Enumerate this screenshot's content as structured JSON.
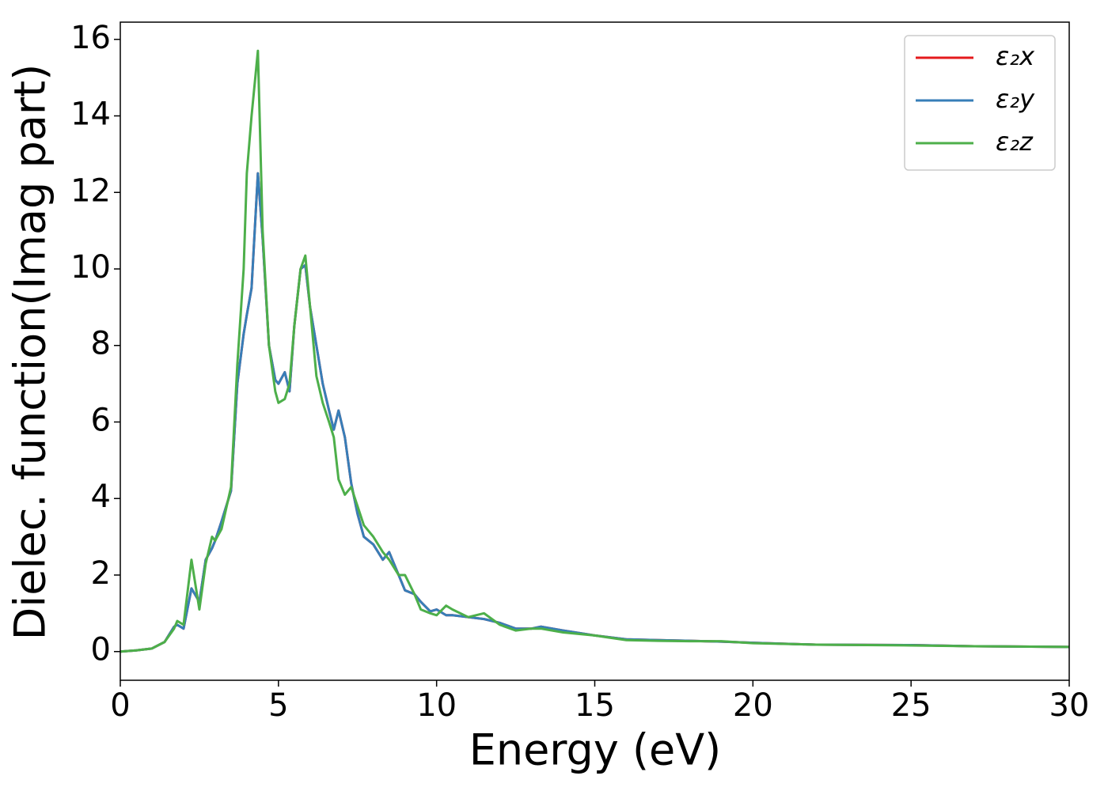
{
  "chart_data": {
    "type": "line",
    "xlabel": "Energy (eV)",
    "ylabel": "Dielec. function(Imag part)",
    "x": [
      0,
      0.5,
      1,
      1.4,
      1.7,
      1.8,
      2.0,
      2.25,
      2.5,
      2.7,
      2.9,
      3.0,
      3.2,
      3.5,
      3.7,
      3.9,
      4.0,
      4.15,
      4.35,
      4.5,
      4.7,
      4.9,
      5.0,
      5.2,
      5.35,
      5.5,
      5.7,
      5.85,
      6.0,
      6.2,
      6.4,
      6.6,
      6.75,
      6.9,
      7.1,
      7.3,
      7.5,
      7.7,
      8.0,
      8.3,
      8.5,
      8.8,
      9.0,
      9.3,
      9.5,
      9.8,
      10.0,
      10.3,
      10.5,
      11,
      11.5,
      12,
      12.5,
      13,
      13.3,
      14,
      15,
      16,
      17,
      18,
      19,
      20,
      22,
      25,
      27,
      30
    ],
    "series": [
      {
        "name": "ε₂x",
        "color": "#e41a1c",
        "values": [
          0,
          0.03,
          0.08,
          0.25,
          0.65,
          0.7,
          0.6,
          1.65,
          1.3,
          2.4,
          2.7,
          2.9,
          3.4,
          4.2,
          7.0,
          8.3,
          8.8,
          9.5,
          12.5,
          10.8,
          8.0,
          7.1,
          7.0,
          7.3,
          6.8,
          8.5,
          10.0,
          10.1,
          9.0,
          8.0,
          7.0,
          6.3,
          5.8,
          6.3,
          5.6,
          4.4,
          3.6,
          3.0,
          2.8,
          2.4,
          2.6,
          2.0,
          1.6,
          1.5,
          1.3,
          1.05,
          1.1,
          0.95,
          0.95,
          0.9,
          0.85,
          0.75,
          0.6,
          0.6,
          0.65,
          0.55,
          0.42,
          0.32,
          0.3,
          0.28,
          0.26,
          0.23,
          0.18,
          0.17,
          0.14,
          0.12
        ]
      },
      {
        "name": "ε₂y",
        "color": "#377eb8",
        "values": [
          0,
          0.03,
          0.08,
          0.25,
          0.65,
          0.7,
          0.6,
          1.65,
          1.3,
          2.4,
          2.7,
          2.9,
          3.4,
          4.2,
          7.0,
          8.3,
          8.8,
          9.5,
          12.5,
          10.8,
          8.0,
          7.1,
          7.0,
          7.3,
          6.8,
          8.5,
          10.0,
          10.1,
          9.0,
          8.0,
          7.0,
          6.3,
          5.8,
          6.3,
          5.6,
          4.4,
          3.6,
          3.0,
          2.8,
          2.4,
          2.6,
          2.0,
          1.6,
          1.5,
          1.3,
          1.05,
          1.1,
          0.95,
          0.95,
          0.9,
          0.85,
          0.75,
          0.6,
          0.6,
          0.65,
          0.55,
          0.42,
          0.32,
          0.3,
          0.28,
          0.26,
          0.23,
          0.18,
          0.17,
          0.14,
          0.12
        ]
      },
      {
        "name": "ε₂z",
        "color": "#4daf4a",
        "values": [
          0,
          0.03,
          0.08,
          0.25,
          0.6,
          0.8,
          0.7,
          2.4,
          1.1,
          2.3,
          3.0,
          2.9,
          3.2,
          4.3,
          7.5,
          10,
          12.5,
          14,
          15.7,
          11,
          8,
          6.8,
          6.5,
          6.6,
          7.0,
          8.5,
          10.0,
          10.35,
          9.0,
          7.2,
          6.5,
          6.0,
          5.6,
          4.5,
          4.1,
          4.3,
          3.8,
          3.3,
          3.0,
          2.6,
          2.4,
          2.0,
          2.0,
          1.5,
          1.1,
          1.0,
          0.95,
          1.2,
          1.1,
          0.9,
          1.0,
          0.7,
          0.55,
          0.6,
          0.6,
          0.5,
          0.42,
          0.3,
          0.28,
          0.27,
          0.27,
          0.22,
          0.18,
          0.16,
          0.14,
          0.12
        ]
      }
    ],
    "xlim": [
      0,
      30
    ],
    "xticks": [
      0,
      5,
      10,
      15,
      20,
      25,
      30
    ],
    "ylim": [
      -0.75,
      16.45
    ],
    "yticks": [
      0,
      2,
      4,
      6,
      8,
      10,
      12,
      14,
      16
    ],
    "legend": "upper right",
    "grid": false
  }
}
